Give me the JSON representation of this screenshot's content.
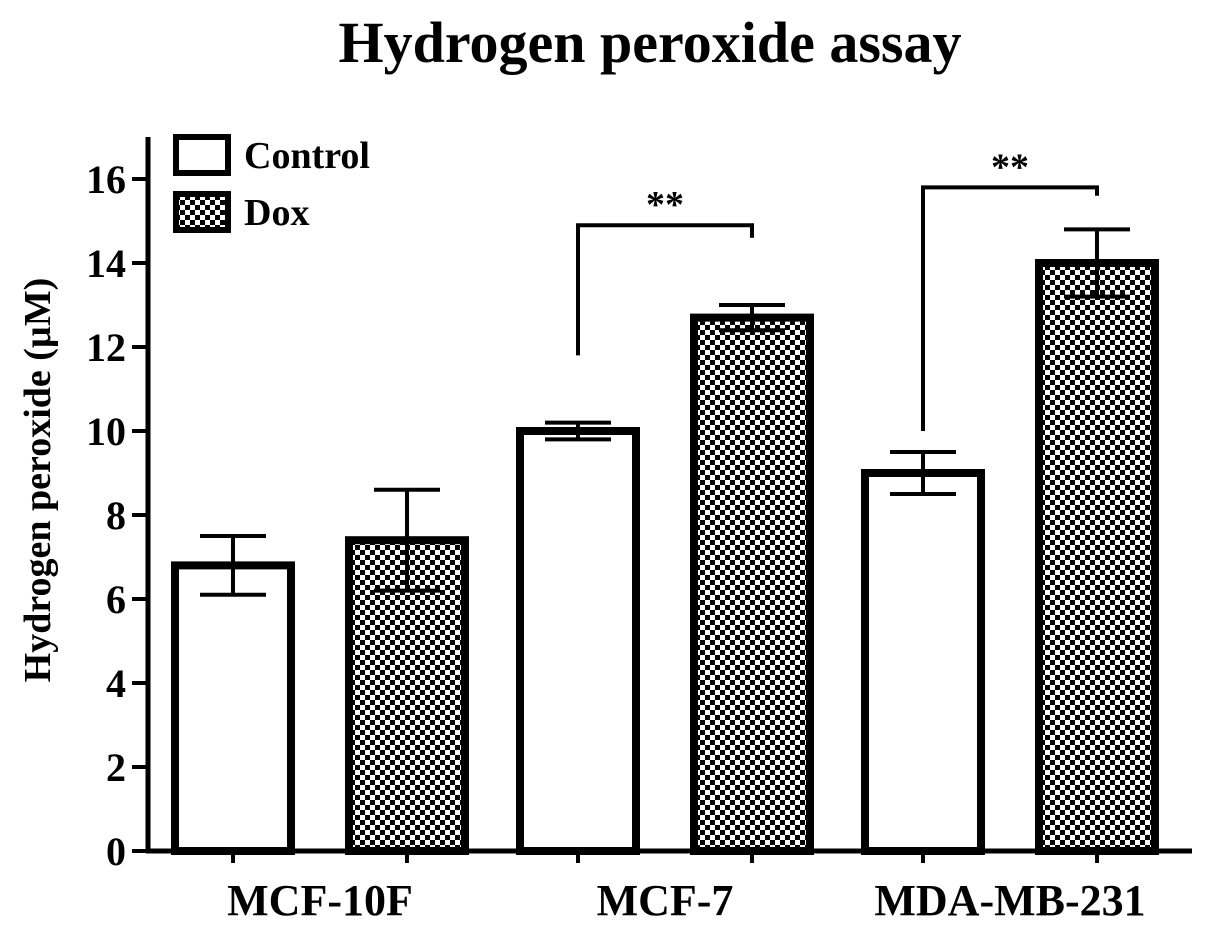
{
  "chart_data": {
    "type": "bar",
    "title": "Hydrogen peroxide assay",
    "xlabel": "",
    "ylabel": "Hydrogen peroxide (µM)",
    "ylim": [
      0,
      17
    ],
    "yticks": [
      0,
      2,
      4,
      6,
      8,
      10,
      12,
      14,
      16
    ],
    "categories": [
      "MCF-10F",
      "MCF-7",
      "MDA-MB-231"
    ],
    "series": [
      {
        "name": "Control",
        "fill": "open",
        "values": [
          6.8,
          10.0,
          9.0
        ],
        "error": [
          0.7,
          0.2,
          0.5
        ]
      },
      {
        "name": "Dox",
        "fill": "checkered",
        "values": [
          7.4,
          12.7,
          14.0
        ],
        "error": [
          1.2,
          0.3,
          0.8
        ]
      }
    ],
    "annotations": [
      {
        "category": "MCF-7",
        "text": "**",
        "bracket_left_y": 11.8,
        "bracket_right_y": 14.6,
        "bracket_top_y": 14.9
      },
      {
        "category": "MDA-MB-231",
        "text": "**",
        "bracket_left_y": 10.0,
        "bracket_right_y": 15.6,
        "bracket_top_y": 15.8
      }
    ],
    "legend": {
      "position": "top-left"
    },
    "grid": false,
    "colors": {
      "ink": "#000000",
      "background": "#ffffff"
    }
  }
}
